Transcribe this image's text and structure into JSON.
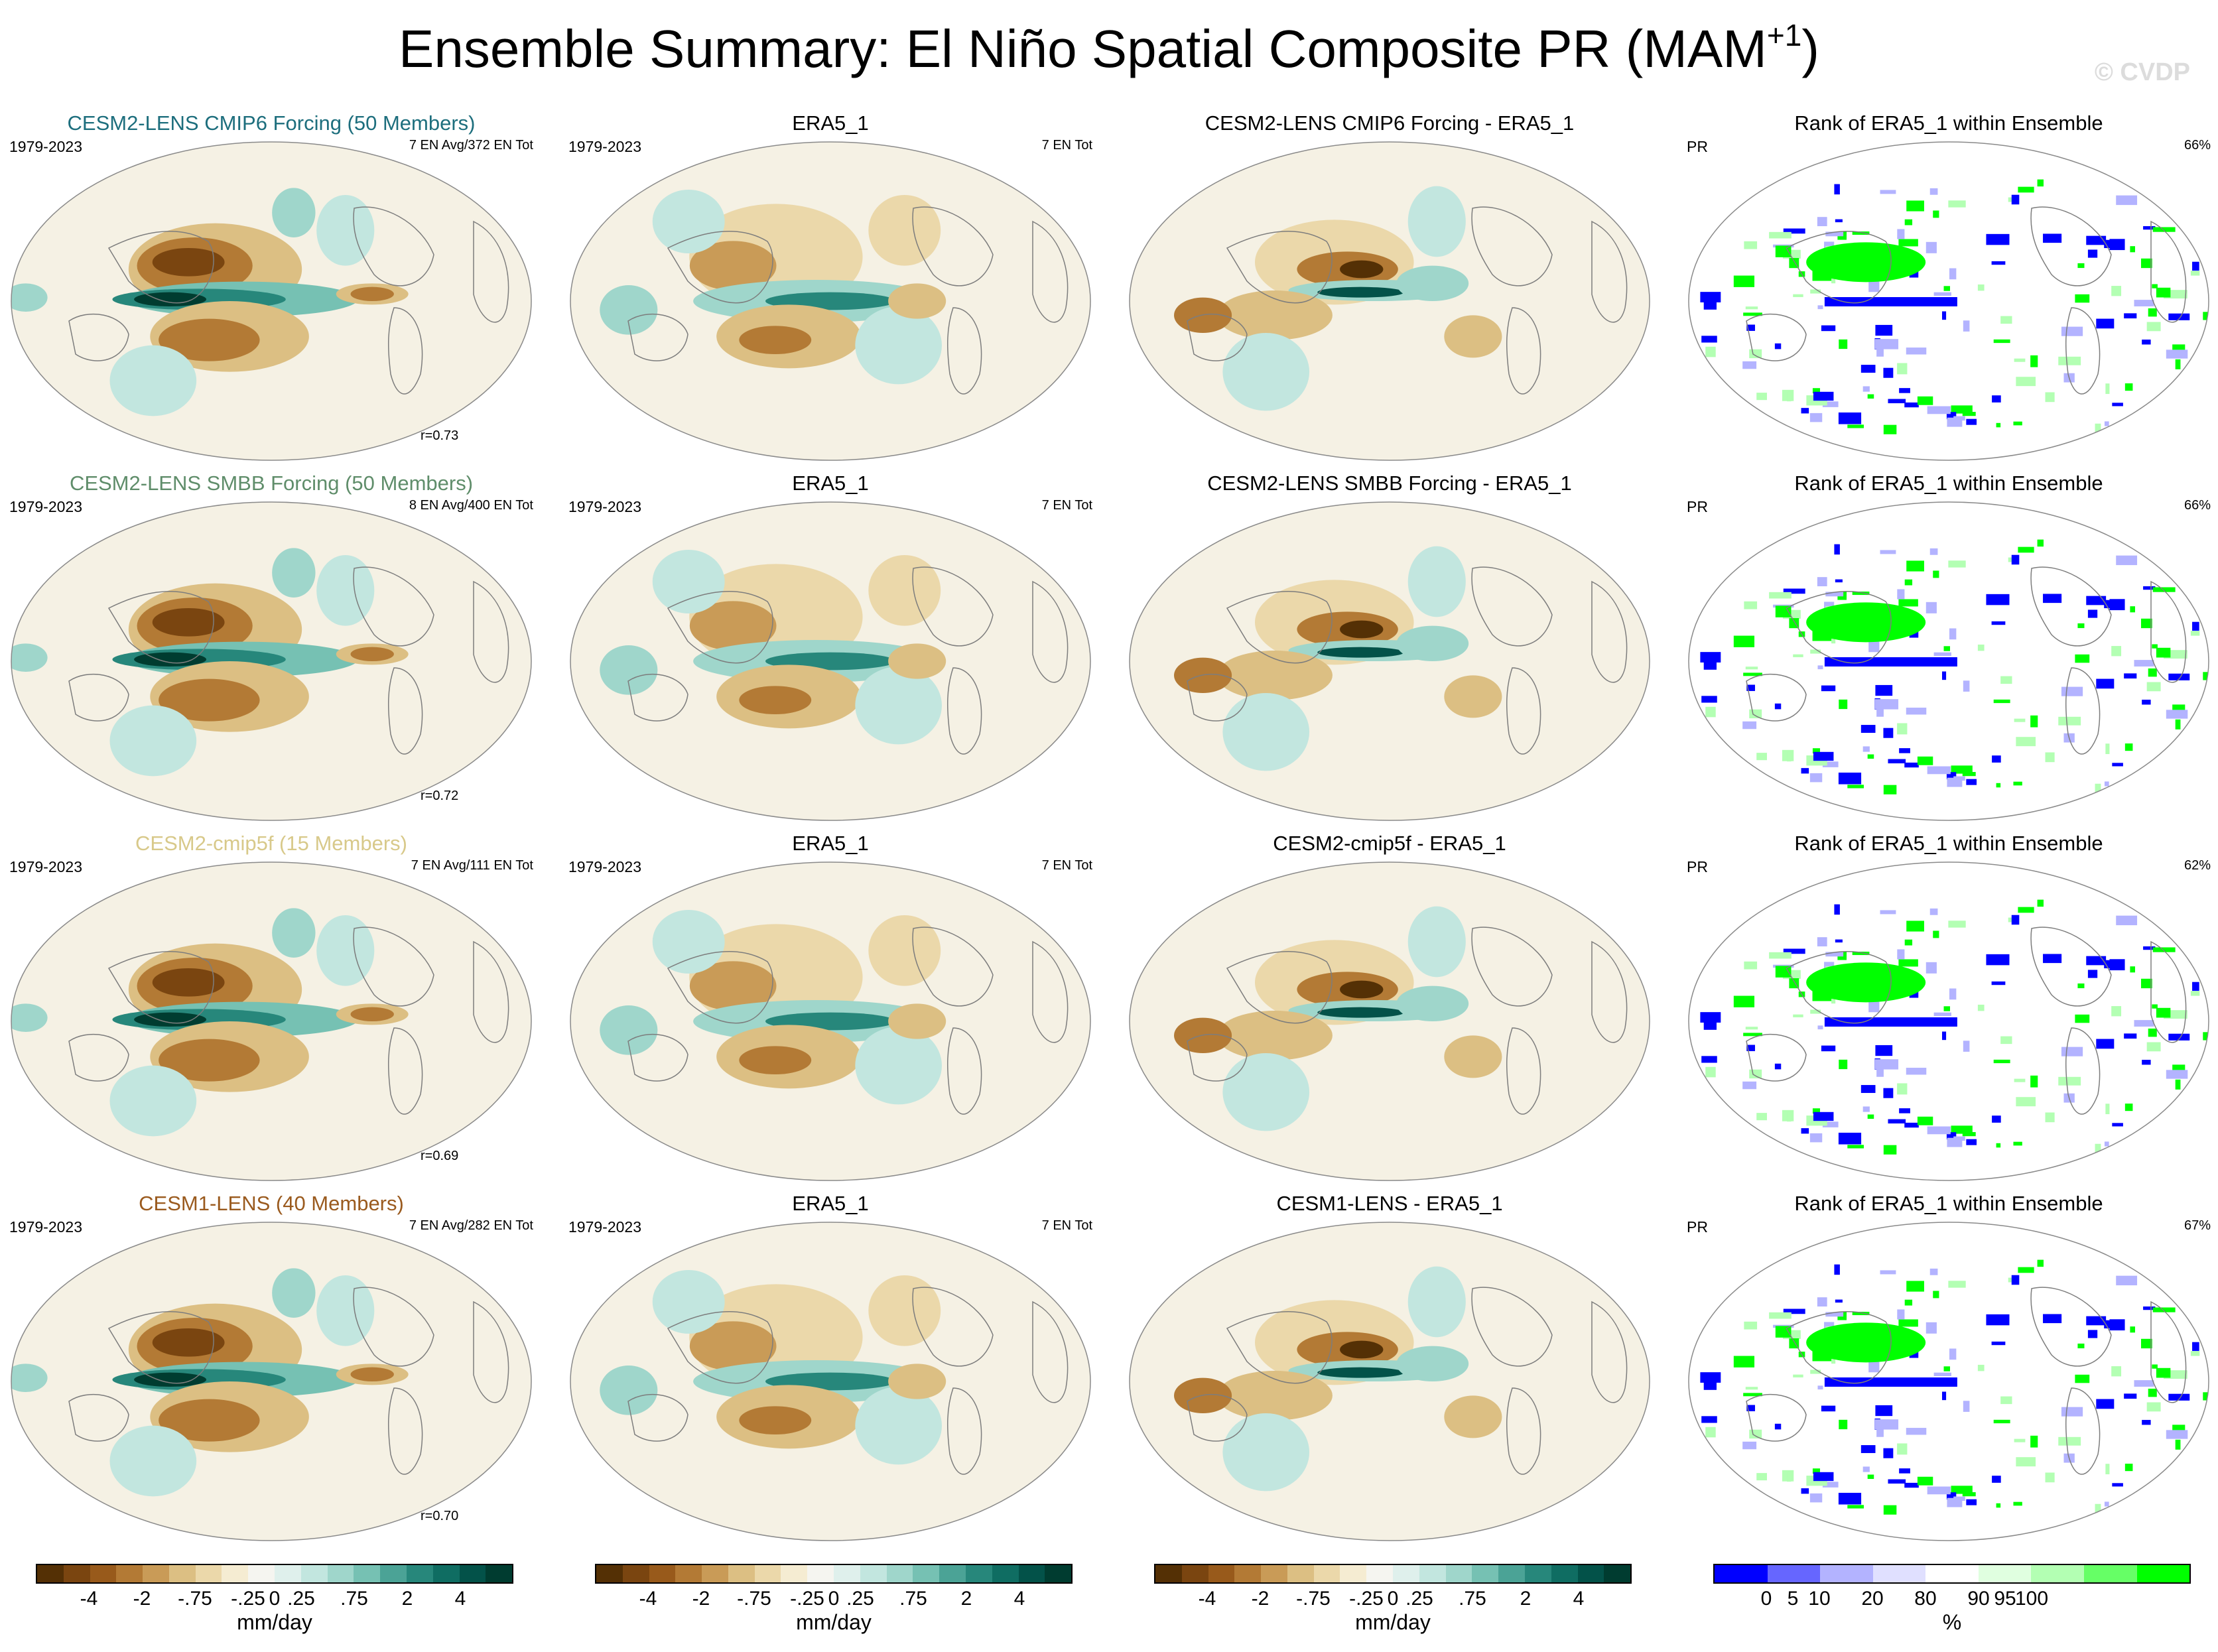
{
  "figure": {
    "title": "Ensemble Summary: El Niño Spatial Composite PR (MAM",
    "title_sup": "+1",
    "title_close": ")",
    "watermark": "© CVDP"
  },
  "rows": [
    {
      "ens": {
        "title": "CESM2-LENS CMIP6 Forcing (50 Members)",
        "title_color": "#1d6e7d",
        "years": "1979-2023",
        "count": "7 EN Avg/372 EN Tot",
        "r": "r=0.73"
      },
      "obs": {
        "title": "ERA5_1",
        "years": "1979-2023",
        "count": "7 EN Tot"
      },
      "diff": {
        "title": "CESM2-LENS CMIP6 Forcing - ERA5_1"
      },
      "rank": {
        "title": "Rank of ERA5_1 within Ensemble",
        "var": "PR",
        "pct": "66%"
      }
    },
    {
      "ens": {
        "title": "CESM2-LENS SMBB Forcing (50 Members)",
        "title_color": "#5f8d6a",
        "years": "1979-2023",
        "count": "8 EN Avg/400 EN Tot",
        "r": "r=0.72"
      },
      "obs": {
        "title": "ERA5_1",
        "years": "1979-2023",
        "count": "7 EN Tot"
      },
      "diff": {
        "title": "CESM2-LENS SMBB Forcing - ERA5_1"
      },
      "rank": {
        "title": "Rank of ERA5_1 within Ensemble",
        "var": "PR",
        "pct": "66%"
      }
    },
    {
      "ens": {
        "title": "CESM2-cmip5f (15 Members)",
        "title_color": "#d8c98a",
        "years": "1979-2023",
        "count": "7 EN Avg/111 EN Tot",
        "r": "r=0.69"
      },
      "obs": {
        "title": "ERA5_1",
        "years": "1979-2023",
        "count": "7 EN Tot"
      },
      "diff": {
        "title": "CESM2-cmip5f - ERA5_1"
      },
      "rank": {
        "title": "Rank of ERA5_1 within Ensemble",
        "var": "PR",
        "pct": "62%"
      }
    },
    {
      "ens": {
        "title": "CESM1-LENS (40 Members)",
        "title_color": "#9a5a1e",
        "years": "1979-2023",
        "count": "7 EN Avg/282 EN Tot",
        "r": "r=0.70"
      },
      "obs": {
        "title": "ERA5_1",
        "years": "1979-2023",
        "count": "7 EN Tot"
      },
      "diff": {
        "title": "CESM1-LENS - ERA5_1"
      },
      "rank": {
        "title": "Rank of ERA5_1 within Ensemble",
        "var": "PR",
        "pct": "67%"
      }
    }
  ],
  "colorbars": {
    "anomaly": {
      "colors": [
        "#543005",
        "#7a4510",
        "#985a1b",
        "#b37a35",
        "#c99b57",
        "#dcbf83",
        "#ebd8aa",
        "#f5ecd2",
        "#f5f5f0",
        "#dff0ec",
        "#c2e6df",
        "#9fd6cb",
        "#76c1b3",
        "#4ba396",
        "#27877b",
        "#0f6d62",
        "#035249",
        "#003c30"
      ],
      "tick_labels": [
        "-4",
        "-2",
        "-.75",
        "-.25",
        "0",
        ".25",
        ".75",
        "2",
        "4"
      ],
      "tick_positions": [
        2,
        4,
        6,
        8,
        9,
        10,
        12,
        14,
        16
      ],
      "units": "mm/day"
    },
    "rank": {
      "colors": [
        "#0000ff",
        "#6666ff",
        "#b3b3ff",
        "#e0e0ff",
        "#ffffff",
        "#e0ffe0",
        "#b3ffb3",
        "#66ff66",
        "#00ff00"
      ],
      "tick_labels": [
        "0",
        "5",
        "10",
        "20",
        "80",
        "90",
        "95",
        "100"
      ],
      "tick_positions": [
        1,
        1.5,
        2,
        3,
        4,
        5,
        5.5,
        6
      ],
      "units": "%"
    }
  }
}
